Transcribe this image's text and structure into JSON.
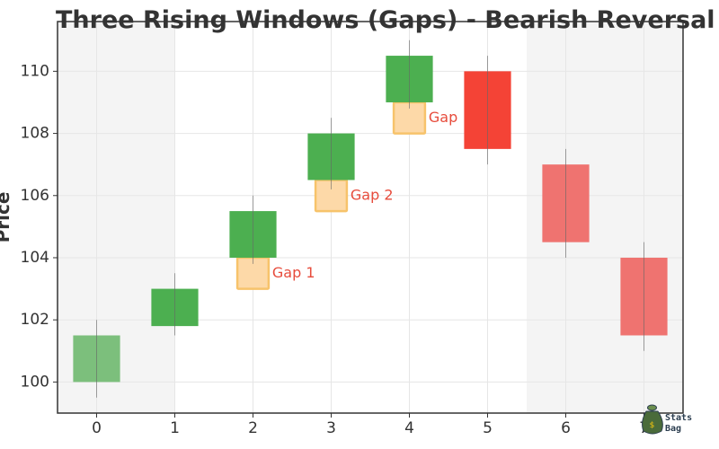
{
  "chart_data": {
    "type": "candlestick",
    "title": "Three Rising Windows (Gaps) - Bearish Reversal",
    "xlabel": "",
    "ylabel": "Price",
    "x": [
      0,
      1,
      2,
      3,
      4,
      5,
      6,
      7
    ],
    "xlim": [
      -0.5,
      7.5
    ],
    "ylim": [
      99,
      111.6
    ],
    "yticks": [
      100,
      102,
      104,
      106,
      108,
      110
    ],
    "grid": true,
    "shaded_regions": [
      {
        "x_from": -0.5,
        "x_to": 1.0,
        "color": "#f4f4f4"
      },
      {
        "x_from": 5.5,
        "x_to": 7.5,
        "color": "#f4f4f4"
      }
    ],
    "candles": [
      {
        "x": 0,
        "open": 100.0,
        "high": 102.0,
        "low": 99.5,
        "close": 101.5,
        "color": "#7cbf7c"
      },
      {
        "x": 1,
        "open": 101.8,
        "high": 103.5,
        "low": 101.5,
        "close": 103.0,
        "color": "#4caf50"
      },
      {
        "x": 2,
        "open": 104.0,
        "high": 106.0,
        "low": 103.8,
        "close": 105.5,
        "color": "#4caf50"
      },
      {
        "x": 3,
        "open": 106.5,
        "high": 108.5,
        "low": 106.2,
        "close": 108.0,
        "color": "#4caf50"
      },
      {
        "x": 4,
        "open": 109.0,
        "high": 111.0,
        "low": 108.8,
        "close": 110.5,
        "color": "#4caf50"
      },
      {
        "x": 5,
        "open": 110.0,
        "high": 110.5,
        "low": 107.0,
        "close": 107.5,
        "color": "#f44336"
      },
      {
        "x": 6,
        "open": 107.0,
        "high": 107.5,
        "low": 104.0,
        "close": 104.5,
        "color": "#ef7370"
      },
      {
        "x": 7,
        "open": 104.0,
        "high": 104.5,
        "low": 101.0,
        "close": 101.5,
        "color": "#ef7370"
      }
    ],
    "gaps": [
      {
        "label": "Gap 1",
        "x": 2,
        "y_low": 103.0,
        "y_high": 104.0
      },
      {
        "label": "Gap 2",
        "x": 3,
        "y_low": 105.5,
        "y_high": 106.5
      },
      {
        "label": "Gap",
        "x": 4,
        "y_low": 108.0,
        "y_high": 109.0
      }
    ],
    "colors": {
      "gap_fill": "#fdd9a8",
      "gap_edge": "#f7c36b",
      "gap_text": "#e74c3c"
    }
  },
  "logo": {
    "line1": "Stats",
    "line2": "Bag"
  }
}
